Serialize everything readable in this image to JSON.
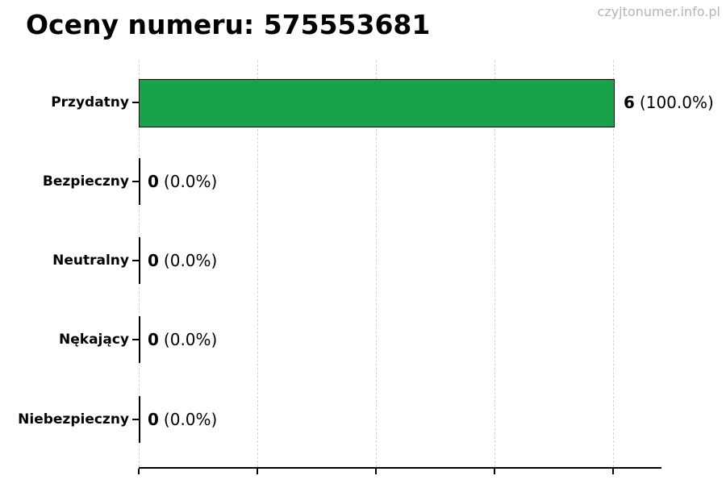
{
  "page": {
    "title": "Oceny numeru: 575553681",
    "watermark": "czyjtonumer.info.pl"
  },
  "chart_data": {
    "type": "bar",
    "orientation": "horizontal",
    "title": "Oceny numeru: 575553681",
    "categories": [
      "Przydatny",
      "Bezpieczny",
      "Neutralny",
      "Nękający",
      "Niebezpieczny"
    ],
    "values": [
      6,
      0,
      0,
      0,
      0
    ],
    "percentages": [
      100.0,
      0.0,
      0.0,
      0.0,
      0.0
    ],
    "value_labels": [
      "6 (100.0%)",
      "0 (0.0%)",
      "0 (0.0%)",
      "0 (0.0%)",
      "0 (0.0%)"
    ],
    "xlim": [
      0,
      6.6
    ],
    "x_ticks": [
      0,
      1.5,
      3,
      4.5,
      6
    ],
    "x_tick_labels_visible": false,
    "grid": true,
    "legend_visible": false,
    "bar_color": "#19a24a",
    "bar_edge_color": "#000000",
    "watermark": "czyjtonumer.info.pl"
  },
  "rows": [
    {
      "label": "Przydatny",
      "value": 6,
      "value_text": "6",
      "pct_text": "(100.0%)"
    },
    {
      "label": "Bezpieczny",
      "value": 0,
      "value_text": "0",
      "pct_text": "(0.0%)"
    },
    {
      "label": "Neutralny",
      "value": 0,
      "value_text": "0",
      "pct_text": "(0.0%)"
    },
    {
      "label": "Nękający",
      "value": 0,
      "value_text": "0",
      "pct_text": "(0.0%)"
    },
    {
      "label": "Niebezpieczny",
      "value": 0,
      "value_text": "0",
      "pct_text": "(0.0%)"
    }
  ],
  "colors": {
    "bar": "#19a24a",
    "bar_edge": "#000000",
    "gridline": "#d4d4d4",
    "axis": "#000000",
    "watermark": "#b5b5b5",
    "text": "#000000"
  }
}
